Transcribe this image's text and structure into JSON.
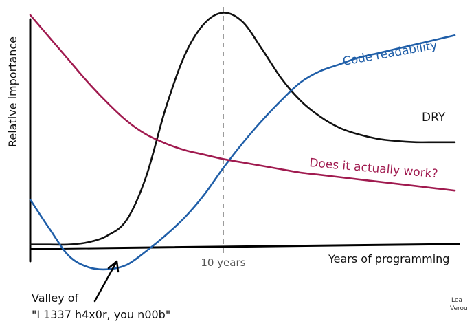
{
  "chart_data": {
    "type": "line",
    "title": "",
    "xlabel": "Years of programming",
    "ylabel": "Relative importance",
    "xlim": [
      0,
      22
    ],
    "ylim": [
      -0.12,
      1.05
    ],
    "grid": false,
    "legend": "none",
    "marker": {
      "x": 10,
      "label": "10 years"
    },
    "series": [
      {
        "name": "DRY",
        "color": "#111111",
        "x": [
          0,
          1,
          2,
          3,
          4,
          5,
          6,
          7,
          8,
          9,
          10,
          11,
          12,
          13,
          14,
          15,
          16,
          17,
          18,
          19,
          20,
          21,
          22
        ],
        "y": [
          0.0,
          0.0,
          0.0,
          0.01,
          0.04,
          0.11,
          0.3,
          0.6,
          0.84,
          0.98,
          1.03,
          0.99,
          0.87,
          0.74,
          0.64,
          0.57,
          0.52,
          0.49,
          0.47,
          0.46,
          0.455,
          0.455,
          0.455
        ]
      },
      {
        "name": "Code readability",
        "color": "#1f5ea8",
        "x": [
          0,
          1,
          2,
          3,
          4,
          5,
          6,
          7,
          8,
          9,
          10,
          11,
          12,
          13,
          14,
          15,
          16,
          17,
          18,
          19,
          20,
          21,
          22
        ],
        "y": [
          0.2,
          0.07,
          -0.05,
          -0.1,
          -0.11,
          -0.09,
          -0.03,
          0.04,
          0.12,
          0.22,
          0.34,
          0.45,
          0.55,
          0.64,
          0.72,
          0.77,
          0.8,
          0.83,
          0.85,
          0.87,
          0.89,
          0.91,
          0.93
        ]
      },
      {
        "name": "Does it actually work?",
        "color": "#a01a4f",
        "x": [
          0,
          1,
          2,
          3,
          4,
          5,
          6,
          7,
          8,
          9,
          10,
          11,
          12,
          13,
          14,
          15,
          16,
          17,
          18,
          19,
          20,
          21,
          22
        ],
        "y": [
          1.02,
          0.92,
          0.82,
          0.72,
          0.63,
          0.55,
          0.49,
          0.45,
          0.42,
          0.4,
          0.38,
          0.365,
          0.35,
          0.335,
          0.32,
          0.31,
          0.3,
          0.29,
          0.28,
          0.27,
          0.26,
          0.25,
          0.24
        ]
      }
    ],
    "annotations": [
      {
        "id": "valley",
        "line1": "Valley of",
        "line2": "\"I 1337 h4x0r, you n00b\""
      }
    ]
  },
  "signature": {
    "line1": "Lea",
    "line2": "Verou"
  }
}
